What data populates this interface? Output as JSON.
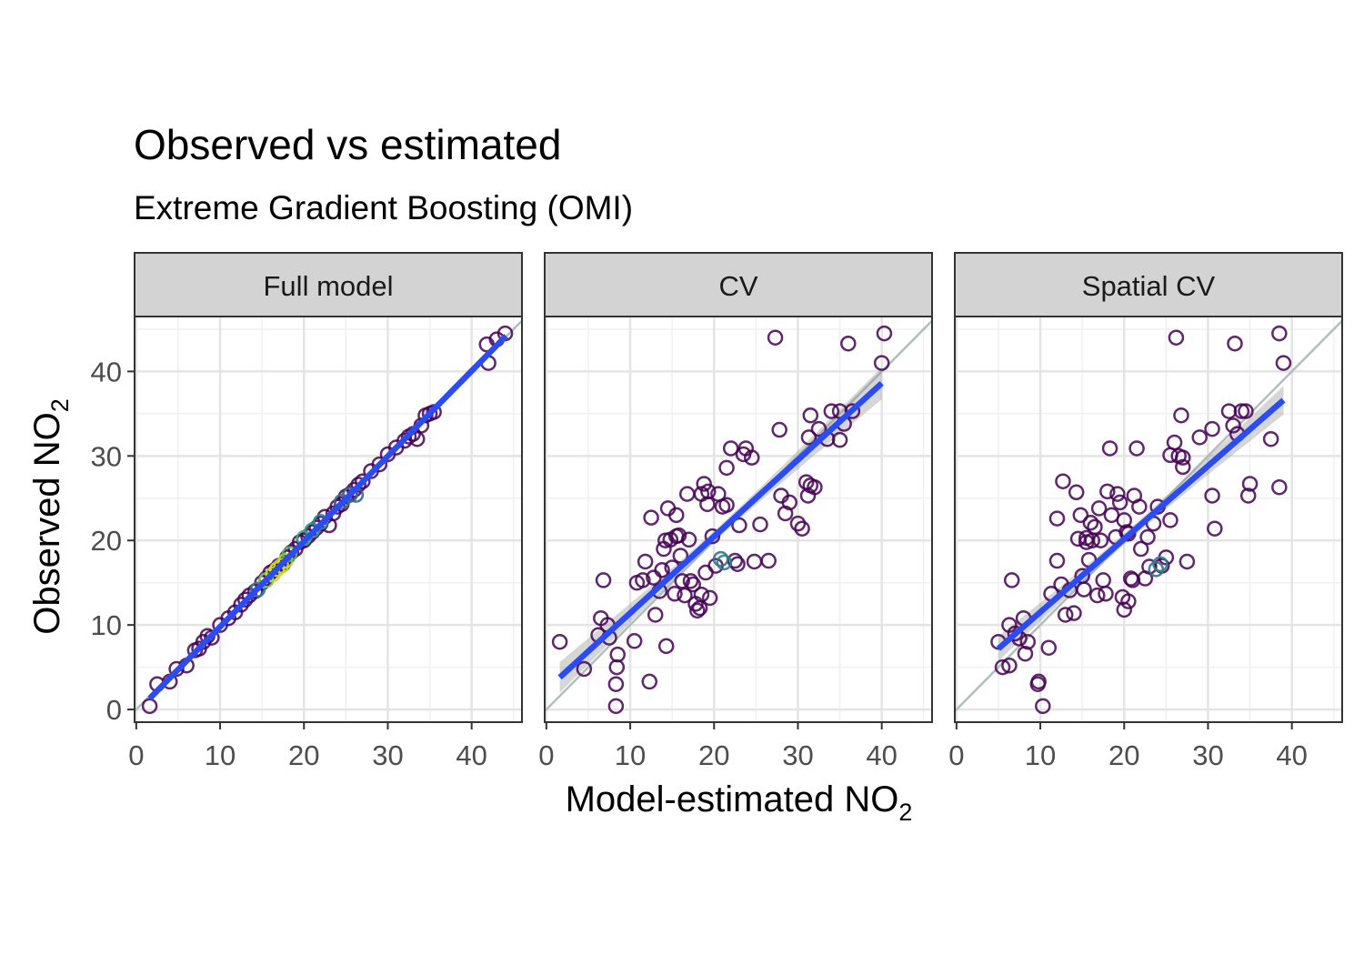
{
  "title": "Observed vs estimated",
  "subtitle": "Extreme Gradient Boosting (OMI)",
  "axis": {
    "x_title": "Model-estimated NO",
    "y_title": "Observed NO",
    "subscript": "2"
  },
  "colors": {
    "point_default": "#440154",
    "point_mid": "#3b6e8c",
    "point_light": "#a8db34",
    "fit_line": "#2b4cf5",
    "identity_line": "#b0bfbc",
    "ci_band": "#999999",
    "strip_fill": "#d3d3d3"
  },
  "chart_data": {
    "type": "scatter",
    "xlim": [
      -0.2,
      46
    ],
    "ylim": [
      -1.5,
      46.5
    ],
    "x_ticks": [
      0,
      10,
      20,
      30,
      40
    ],
    "y_ticks": [
      0,
      10,
      20,
      30,
      40
    ],
    "grid": true,
    "identity_line": true,
    "panels": [
      {
        "name": "Full model",
        "fit": {
          "x": [
            1.6,
            44.1
          ],
          "y": [
            1.3,
            44.2
          ],
          "ci": 0.3
        },
        "points": [
          [
            1.6,
            0.4
          ],
          [
            2.5,
            3.0
          ],
          [
            4.0,
            3.3
          ],
          [
            4.8,
            4.8
          ],
          [
            6.0,
            5.2
          ],
          [
            7.0,
            7.0
          ],
          [
            7.5,
            7.2
          ],
          [
            8.0,
            8.0
          ],
          [
            8.5,
            8.7
          ],
          [
            9.0,
            8.5
          ],
          [
            10.0,
            10.0
          ],
          [
            11.0,
            10.8
          ],
          [
            11.8,
            11.5
          ],
          [
            12.5,
            12.4
          ],
          [
            13.0,
            13.0
          ],
          [
            13.5,
            13.5
          ],
          [
            14.2,
            14.0
          ],
          [
            15.0,
            15.0
          ],
          [
            15.5,
            15.5
          ],
          [
            16.0,
            16.2
          ],
          [
            16.5,
            16.5
          ],
          [
            17.0,
            17.0
          ],
          [
            17.5,
            17.2
          ],
          [
            18.0,
            18.0
          ],
          [
            18.5,
            18.6
          ],
          [
            19.0,
            19.0
          ],
          [
            19.5,
            19.8
          ],
          [
            20.0,
            20.0
          ],
          [
            20.5,
            20.5
          ],
          [
            21.0,
            21.0
          ],
          [
            21.5,
            21.5
          ],
          [
            22.0,
            22.0
          ],
          [
            22.5,
            22.8
          ],
          [
            23.0,
            21.8
          ],
          [
            23.5,
            23.2
          ],
          [
            24.0,
            24.0
          ],
          [
            24.5,
            24.3
          ],
          [
            25.0,
            25.2
          ],
          [
            25.5,
            25.5
          ],
          [
            26.0,
            26.0
          ],
          [
            26.5,
            26.6
          ],
          [
            27.0,
            27.0
          ],
          [
            28.0,
            28.2
          ],
          [
            29.0,
            29.0
          ],
          [
            30.0,
            30.2
          ],
          [
            31.0,
            31.0
          ],
          [
            32.0,
            31.8
          ],
          [
            32.5,
            32.3
          ],
          [
            33.0,
            32.6
          ],
          [
            33.5,
            32.0
          ],
          [
            34.0,
            33.6
          ],
          [
            34.5,
            34.8
          ],
          [
            35.0,
            35.0
          ],
          [
            35.5,
            35.2
          ],
          [
            41.8,
            43.2
          ],
          [
            42.0,
            41.0
          ],
          [
            43.0,
            43.8
          ],
          [
            44.0,
            44.5
          ]
        ],
        "highlight_points": [
          {
            "x": 14.5,
            "y": 14.2,
            "c": "#2c7f8e"
          },
          {
            "x": 15.5,
            "y": 15.3,
            "c": "#7ad151"
          },
          {
            "x": 16.3,
            "y": 16.0,
            "c": "#bddf26"
          },
          {
            "x": 16.8,
            "y": 16.6,
            "c": "#d8e219"
          },
          {
            "x": 17.3,
            "y": 17.0,
            "c": "#b5de2b"
          },
          {
            "x": 17.8,
            "y": 17.6,
            "c": "#c2df23"
          },
          {
            "x": 18.3,
            "y": 18.4,
            "c": "#56b763"
          },
          {
            "x": 20.0,
            "y": 20.3,
            "c": "#35b779"
          },
          {
            "x": 21.0,
            "y": 21.2,
            "c": "#2a9d8c"
          },
          {
            "x": 22.0,
            "y": 22.2,
            "c": "#2c8a8c"
          },
          {
            "x": 24.5,
            "y": 24.6,
            "c": "#3b6e8c"
          },
          {
            "x": 25.5,
            "y": 25.4,
            "c": "#3f6e8c"
          },
          {
            "x": 26.2,
            "y": 25.4,
            "c": "#33638d"
          }
        ]
      },
      {
        "name": "CV",
        "fit": {
          "x": [
            1.6,
            40.0
          ],
          "y": [
            3.8,
            38.6
          ],
          "ci_ends": 1.9,
          "ci_mid": 0.65,
          "ci_center": 20.3
        },
        "points": [
          [
            1.6,
            8.0
          ],
          [
            4.5,
            4.8
          ],
          [
            6.2,
            8.8
          ],
          [
            6.5,
            10.8
          ],
          [
            6.8,
            15.3
          ],
          [
            7.3,
            10.0
          ],
          [
            7.5,
            8.5
          ],
          [
            8.3,
            3.0
          ],
          [
            8.3,
            0.4
          ],
          [
            8.4,
            5.0
          ],
          [
            8.5,
            6.5
          ],
          [
            10.5,
            8.1
          ],
          [
            10.8,
            15.0
          ],
          [
            11.5,
            15.3
          ],
          [
            11.8,
            17.5
          ],
          [
            12.3,
            3.3
          ],
          [
            12.5,
            22.7
          ],
          [
            12.8,
            15.6
          ],
          [
            13.0,
            11.2
          ],
          [
            13.5,
            14.0
          ],
          [
            13.8,
            16.5
          ],
          [
            14.0,
            19.0
          ],
          [
            14.2,
            20.0
          ],
          [
            14.3,
            7.5
          ],
          [
            14.5,
            23.8
          ],
          [
            14.8,
            20.1
          ],
          [
            15.0,
            16.8
          ],
          [
            15.3,
            13.7
          ],
          [
            15.5,
            20.5
          ],
          [
            15.5,
            23.0
          ],
          [
            15.8,
            20.6
          ],
          [
            16.0,
            18.2
          ],
          [
            16.2,
            15.2
          ],
          [
            16.5,
            13.5
          ],
          [
            16.8,
            25.5
          ],
          [
            17.0,
            20.1
          ],
          [
            17.2,
            15.2
          ],
          [
            17.5,
            14.8
          ],
          [
            17.8,
            12.5
          ],
          [
            18.0,
            11.7
          ],
          [
            18.3,
            12.0
          ],
          [
            18.5,
            13.6
          ],
          [
            18.8,
            26.7
          ],
          [
            18.5,
            25.5
          ],
          [
            19.0,
            16.2
          ],
          [
            19.2,
            24.3
          ],
          [
            19.3,
            25.8
          ],
          [
            19.5,
            13.2
          ],
          [
            19.8,
            20.5
          ],
          [
            20.2,
            17.0
          ],
          [
            20.5,
            25.5
          ],
          [
            21.0,
            24.0
          ],
          [
            21.5,
            28.6
          ],
          [
            21.5,
            24.2
          ],
          [
            22.0,
            30.9
          ],
          [
            22.5,
            17.6
          ],
          [
            22.8,
            17.2
          ],
          [
            23.0,
            21.8
          ],
          [
            23.5,
            30.2
          ],
          [
            23.8,
            30.9
          ],
          [
            24.5,
            29.8
          ],
          [
            24.8,
            17.5
          ],
          [
            25.5,
            21.9
          ],
          [
            26.5,
            17.6
          ],
          [
            27.3,
            44.0
          ],
          [
            27.8,
            33.1
          ],
          [
            28.0,
            25.3
          ],
          [
            28.5,
            23.2
          ],
          [
            29.0,
            24.5
          ],
          [
            30.0,
            22.0
          ],
          [
            30.5,
            21.4
          ],
          [
            31.0,
            26.9
          ],
          [
            31.2,
            25.3
          ],
          [
            31.5,
            26.5
          ],
          [
            31.3,
            32.2
          ],
          [
            31.5,
            34.8
          ],
          [
            32.0,
            26.3
          ],
          [
            32.5,
            33.2
          ],
          [
            33.5,
            32.0
          ],
          [
            34.0,
            35.3
          ],
          [
            35.0,
            35.3
          ],
          [
            35.0,
            31.9
          ],
          [
            35.5,
            33.8
          ],
          [
            36.0,
            43.3
          ],
          [
            36.5,
            35.3
          ],
          [
            40.0,
            41.0
          ],
          [
            40.3,
            44.5
          ]
        ],
        "highlight_points": [
          {
            "x": 20.8,
            "y": 17.8,
            "c": "#3b6e8c"
          },
          {
            "x": 21.2,
            "y": 17.4,
            "c": "#2c7f8e"
          }
        ]
      },
      {
        "name": "Spatial CV",
        "fit": {
          "x": [
            5.0,
            39.0
          ],
          "y": [
            7.2,
            36.6
          ],
          "ci_ends": 1.7,
          "ci_mid": 0.65,
          "ci_center": 20.5
        },
        "points": [
          [
            5.0,
            8.0
          ],
          [
            5.5,
            5.0
          ],
          [
            6.3,
            5.2
          ],
          [
            6.3,
            10.0
          ],
          [
            6.6,
            15.3
          ],
          [
            7.0,
            9.0
          ],
          [
            7.5,
            8.4
          ],
          [
            8.0,
            10.8
          ],
          [
            8.2,
            6.6
          ],
          [
            8.5,
            8.0
          ],
          [
            9.7,
            3.0
          ],
          [
            9.8,
            3.3
          ],
          [
            10.3,
            0.4
          ],
          [
            11.0,
            7.3
          ],
          [
            11.3,
            13.7
          ],
          [
            12.0,
            17.6
          ],
          [
            12.0,
            22.6
          ],
          [
            12.5,
            14.8
          ],
          [
            12.7,
            27.0
          ],
          [
            13.0,
            11.2
          ],
          [
            13.5,
            14.1
          ],
          [
            14.0,
            11.4
          ],
          [
            14.3,
            25.7
          ],
          [
            14.5,
            20.2
          ],
          [
            14.8,
            23.0
          ],
          [
            15.0,
            15.8
          ],
          [
            15.2,
            14.2
          ],
          [
            15.5,
            19.8
          ],
          [
            15.5,
            20.3
          ],
          [
            15.8,
            17.7
          ],
          [
            16.0,
            22.1
          ],
          [
            16.2,
            20.0
          ],
          [
            16.5,
            21.6
          ],
          [
            16.8,
            13.5
          ],
          [
            17.0,
            23.8
          ],
          [
            17.2,
            20.0
          ],
          [
            17.5,
            15.3
          ],
          [
            17.8,
            13.7
          ],
          [
            18.0,
            25.8
          ],
          [
            18.3,
            30.9
          ],
          [
            18.5,
            23.0
          ],
          [
            19.0,
            20.4
          ],
          [
            19.2,
            25.5
          ],
          [
            19.5,
            24.5
          ],
          [
            19.8,
            13.3
          ],
          [
            20.0,
            11.8
          ],
          [
            20.0,
            22.4
          ],
          [
            20.3,
            21.0
          ],
          [
            20.5,
            12.8
          ],
          [
            20.8,
            15.5
          ],
          [
            20.5,
            20.8
          ],
          [
            21.0,
            15.3
          ],
          [
            21.2,
            25.3
          ],
          [
            21.5,
            30.9
          ],
          [
            21.8,
            24.0
          ],
          [
            22.0,
            19.0
          ],
          [
            22.5,
            15.5
          ],
          [
            22.8,
            20.4
          ],
          [
            23.0,
            16.9
          ],
          [
            23.5,
            22.0
          ],
          [
            24.0,
            24.0
          ],
          [
            24.5,
            17.0
          ],
          [
            25.0,
            18.0
          ],
          [
            25.5,
            30.1
          ],
          [
            25.5,
            22.4
          ],
          [
            26.0,
            31.6
          ],
          [
            26.2,
            44.0
          ],
          [
            26.5,
            30.0
          ],
          [
            26.8,
            34.8
          ],
          [
            27.0,
            28.7
          ],
          [
            27.0,
            29.8
          ],
          [
            27.5,
            17.5
          ],
          [
            29.0,
            32.2
          ],
          [
            30.5,
            25.3
          ],
          [
            30.5,
            33.2
          ],
          [
            30.8,
            21.4
          ],
          [
            32.5,
            35.3
          ],
          [
            33.0,
            33.6
          ],
          [
            33.2,
            43.3
          ],
          [
            33.5,
            32.6
          ],
          [
            34.0,
            35.3
          ],
          [
            34.5,
            35.3
          ],
          [
            34.8,
            25.3
          ],
          [
            35.0,
            26.7
          ],
          [
            37.5,
            32.0
          ],
          [
            38.5,
            26.3
          ],
          [
            38.5,
            44.5
          ],
          [
            39.0,
            41.0
          ]
        ],
        "highlight_points": [
          {
            "x": 23.8,
            "y": 16.6,
            "c": "#3b6e8c"
          },
          {
            "x": 24.3,
            "y": 17.2,
            "c": "#2c7f8e"
          }
        ]
      }
    ]
  }
}
